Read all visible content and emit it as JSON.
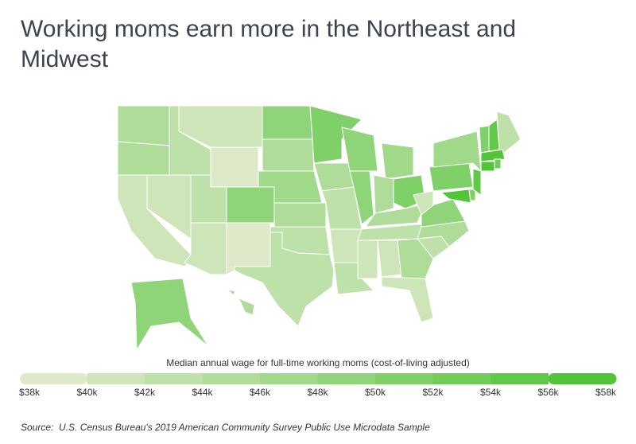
{
  "chart_data": {
    "type": "choropleth",
    "title": "Working moms earn more in the Northeast and Midwest",
    "legend_title": "Median annual wage for full-time working moms (cost-of-living adjusted)",
    "colorlim": [
      38000,
      58000
    ],
    "colors": [
      "#dde9c9",
      "#52c43a"
    ],
    "ticks": [
      {
        "value": 38000,
        "label": "$38k"
      },
      {
        "value": 40000,
        "label": "$40k"
      },
      {
        "value": 42000,
        "label": "$42k"
      },
      {
        "value": 44000,
        "label": "$44k"
      },
      {
        "value": 46000,
        "label": "$46k"
      },
      {
        "value": 48000,
        "label": "$48k"
      },
      {
        "value": 50000,
        "label": "$50k"
      },
      {
        "value": 52000,
        "label": "$52k"
      },
      {
        "value": 54000,
        "label": "$54k"
      },
      {
        "value": 56000,
        "label": "$56k"
      },
      {
        "value": 58000,
        "label": "$58k"
      }
    ],
    "values": [
      45000,
      45000,
      41000,
      41000,
      42000,
      41000,
      38500,
      42000,
      48000,
      41000,
      38500,
      48000,
      44000,
      46000,
      45000,
      42000,
      42000,
      50000,
      45000,
      43000,
      41000,
      42000,
      48000,
      49000,
      47000,
      45000,
      50000,
      44000,
      42000,
      40000,
      41000,
      44000,
      40000,
      43000,
      45000,
      48000,
      40000,
      50000,
      47000,
      56000,
      50000,
      54000,
      50000,
      55000,
      42000,
      56000,
      56000,
      52000,
      49000,
      44000
    ],
    "source_label": "Source:",
    "source": "U.S. Census Bureau's 2019 American Community Survey Public Use Microdata Sample"
  }
}
